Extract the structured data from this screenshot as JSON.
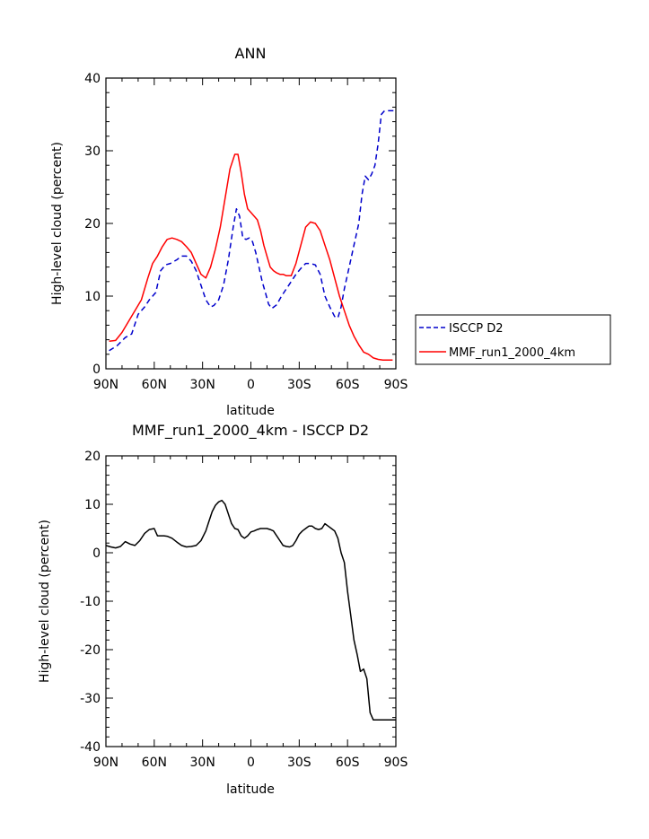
{
  "chart_data": [
    {
      "type": "line",
      "title": "ANN",
      "xlabel": "latitude",
      "ylabel": "High-level cloud (percent)",
      "xlim": [
        -90,
        90
      ],
      "ylim": [
        0,
        40
      ],
      "x_ticks": [
        {
          "value": -90,
          "label": "90N"
        },
        {
          "value": -60,
          "label": "60N"
        },
        {
          "value": -30,
          "label": "30N"
        },
        {
          "value": 0,
          "label": "0"
        },
        {
          "value": 30,
          "label": "30S"
        },
        {
          "value": 60,
          "label": "60S"
        },
        {
          "value": 90,
          "label": "90S"
        }
      ],
      "y_ticks": [
        {
          "value": 0,
          "label": "0"
        },
        {
          "value": 10,
          "label": "10"
        },
        {
          "value": 20,
          "label": "20"
        },
        {
          "value": 30,
          "label": "30"
        },
        {
          "value": 40,
          "label": "40"
        }
      ],
      "grid": false,
      "legend_position": "right",
      "series": [
        {
          "name": "ISCCP D2",
          "color": "#0000cc",
          "style": "dashed",
          "x": [
            -88,
            -83,
            -78,
            -74,
            -70,
            -66,
            -63,
            -59,
            -56,
            -53,
            -50,
            -46,
            -43,
            -40,
            -37,
            -34,
            -31,
            -28,
            -25,
            -23,
            -20,
            -17,
            -14,
            -11,
            -9,
            -7,
            -5,
            -3,
            -1,
            1,
            3,
            5,
            7,
            9,
            11,
            13,
            16,
            19,
            22,
            25,
            28,
            31,
            34,
            37,
            40,
            43,
            46,
            49,
            52,
            54,
            56,
            58,
            61,
            64,
            67,
            69,
            71,
            73,
            75,
            77,
            79,
            81,
            83,
            85,
            87,
            89
          ],
          "values": [
            2.5,
            3.2,
            4.3,
            4.8,
            7.5,
            8.5,
            9.5,
            10.5,
            13.5,
            14.3,
            14.5,
            15.0,
            15.5,
            15.5,
            14.8,
            13.5,
            11.5,
            9.5,
            8.5,
            8.7,
            9.5,
            11.5,
            15.0,
            19.5,
            22.0,
            21.0,
            18.0,
            17.8,
            18.0,
            17.5,
            16.0,
            14.0,
            12.0,
            10.5,
            8.9,
            8.3,
            8.8,
            10.0,
            11.0,
            12.0,
            13.0,
            13.8,
            14.5,
            14.5,
            14.3,
            13.0,
            10.0,
            8.5,
            7.2,
            7.0,
            8.5,
            11.0,
            14.0,
            17.0,
            20.0,
            24.0,
            26.5,
            26.0,
            26.8,
            28.0,
            31.0,
            35.0,
            35.5,
            35.5,
            35.5,
            35.5
          ]
        },
        {
          "name": "MMF_run1_2000_4km",
          "color": "#ff0000",
          "style": "solid",
          "x": [
            -88,
            -84,
            -80,
            -76,
            -72,
            -68,
            -64,
            -61,
            -58,
            -55,
            -52,
            -49,
            -46,
            -43,
            -40,
            -37,
            -34,
            -31,
            -28,
            -25,
            -22,
            -19,
            -16,
            -13,
            -10,
            -8,
            -6,
            -4,
            -2,
            0,
            2,
            4,
            6,
            8,
            10,
            12,
            14,
            16,
            18,
            20,
            22,
            25,
            28,
            31,
            34,
            37,
            40,
            43,
            46,
            49,
            52,
            55,
            58,
            61,
            64,
            67,
            70,
            73,
            76,
            79,
            82,
            85,
            88
          ],
          "values": [
            3.8,
            3.9,
            5.0,
            6.5,
            8.0,
            9.5,
            12.5,
            14.5,
            15.5,
            16.8,
            17.8,
            18.0,
            17.8,
            17.5,
            16.8,
            16.0,
            14.5,
            13.0,
            12.5,
            14.0,
            16.5,
            19.5,
            23.5,
            27.5,
            29.5,
            29.5,
            27.0,
            24.0,
            22.0,
            21.5,
            21.0,
            20.5,
            19.0,
            17.0,
            15.5,
            14.0,
            13.5,
            13.2,
            13.0,
            13.0,
            12.8,
            12.8,
            14.5,
            17.0,
            19.5,
            20.2,
            20.0,
            19.0,
            17.0,
            15.0,
            12.5,
            10.0,
            8.0,
            6.0,
            4.5,
            3.3,
            2.3,
            2.0,
            1.5,
            1.3,
            1.2,
            1.2,
            1.2
          ]
        }
      ]
    },
    {
      "type": "line",
      "title": "MMF_run1_2000_4km - ISCCP D2",
      "xlabel": "latitude",
      "ylabel": "High-level cloud (percent)",
      "xlim": [
        -90,
        90
      ],
      "ylim": [
        -40,
        20
      ],
      "x_ticks": [
        {
          "value": -90,
          "label": "90N"
        },
        {
          "value": -60,
          "label": "60N"
        },
        {
          "value": -30,
          "label": "30N"
        },
        {
          "value": 0,
          "label": "0"
        },
        {
          "value": 30,
          "label": "30S"
        },
        {
          "value": 60,
          "label": "60S"
        },
        {
          "value": 90,
          "label": "90S"
        }
      ],
      "y_ticks": [
        {
          "value": -40,
          "label": "-40"
        },
        {
          "value": -30,
          "label": "-30"
        },
        {
          "value": -20,
          "label": "-20"
        },
        {
          "value": -10,
          "label": "-10"
        },
        {
          "value": 0,
          "label": "0"
        },
        {
          "value": 10,
          "label": "10"
        },
        {
          "value": 20,
          "label": "20"
        }
      ],
      "grid": false,
      "series": [
        {
          "color": "#000000",
          "style": "solid",
          "x": [
            -90,
            -87,
            -84,
            -81,
            -78,
            -75,
            -72,
            -69,
            -66,
            -63,
            -60,
            -58,
            -56,
            -54,
            -52,
            -49,
            -46,
            -43,
            -40,
            -37,
            -34,
            -31,
            -28,
            -26,
            -24,
            -22,
            -20,
            -18,
            -16,
            -14,
            -12,
            -10,
            -8,
            -6,
            -4,
            -2,
            0,
            2,
            4,
            6,
            8,
            10,
            12,
            14,
            16,
            18,
            20,
            22,
            24,
            26,
            28,
            30,
            32,
            34,
            36,
            38,
            40,
            42,
            44,
            46,
            48,
            50,
            52,
            54,
            56,
            58,
            60,
            62,
            64,
            66,
            68,
            70,
            72,
            74,
            76,
            78,
            80,
            82,
            84,
            86,
            88,
            90
          ],
          "values": [
            1.5,
            1.2,
            1.0,
            1.3,
            2.3,
            1.8,
            1.5,
            2.5,
            4.0,
            4.8,
            5.0,
            3.5,
            3.5,
            3.5,
            3.4,
            3.0,
            2.2,
            1.5,
            1.2,
            1.3,
            1.5,
            2.5,
            4.5,
            6.5,
            8.5,
            9.8,
            10.5,
            10.8,
            10.0,
            8.0,
            6.0,
            5.0,
            4.8,
            3.5,
            3.0,
            3.5,
            4.3,
            4.5,
            4.8,
            5.0,
            5.0,
            5.0,
            4.8,
            4.5,
            3.5,
            2.5,
            1.5,
            1.3,
            1.2,
            1.5,
            2.5,
            3.8,
            4.5,
            5.0,
            5.5,
            5.5,
            5.0,
            4.8,
            5.0,
            6.0,
            5.5,
            5.0,
            4.5,
            3.0,
            0.0,
            -2.0,
            -8.0,
            -13.0,
            -18.0,
            -21.0,
            -24.5,
            -24.0,
            -26.0,
            -33.0,
            -34.5,
            -34.5,
            -34.5,
            -34.5,
            -34.5,
            -34.5,
            -34.5,
            -34.5
          ]
        }
      ]
    }
  ]
}
